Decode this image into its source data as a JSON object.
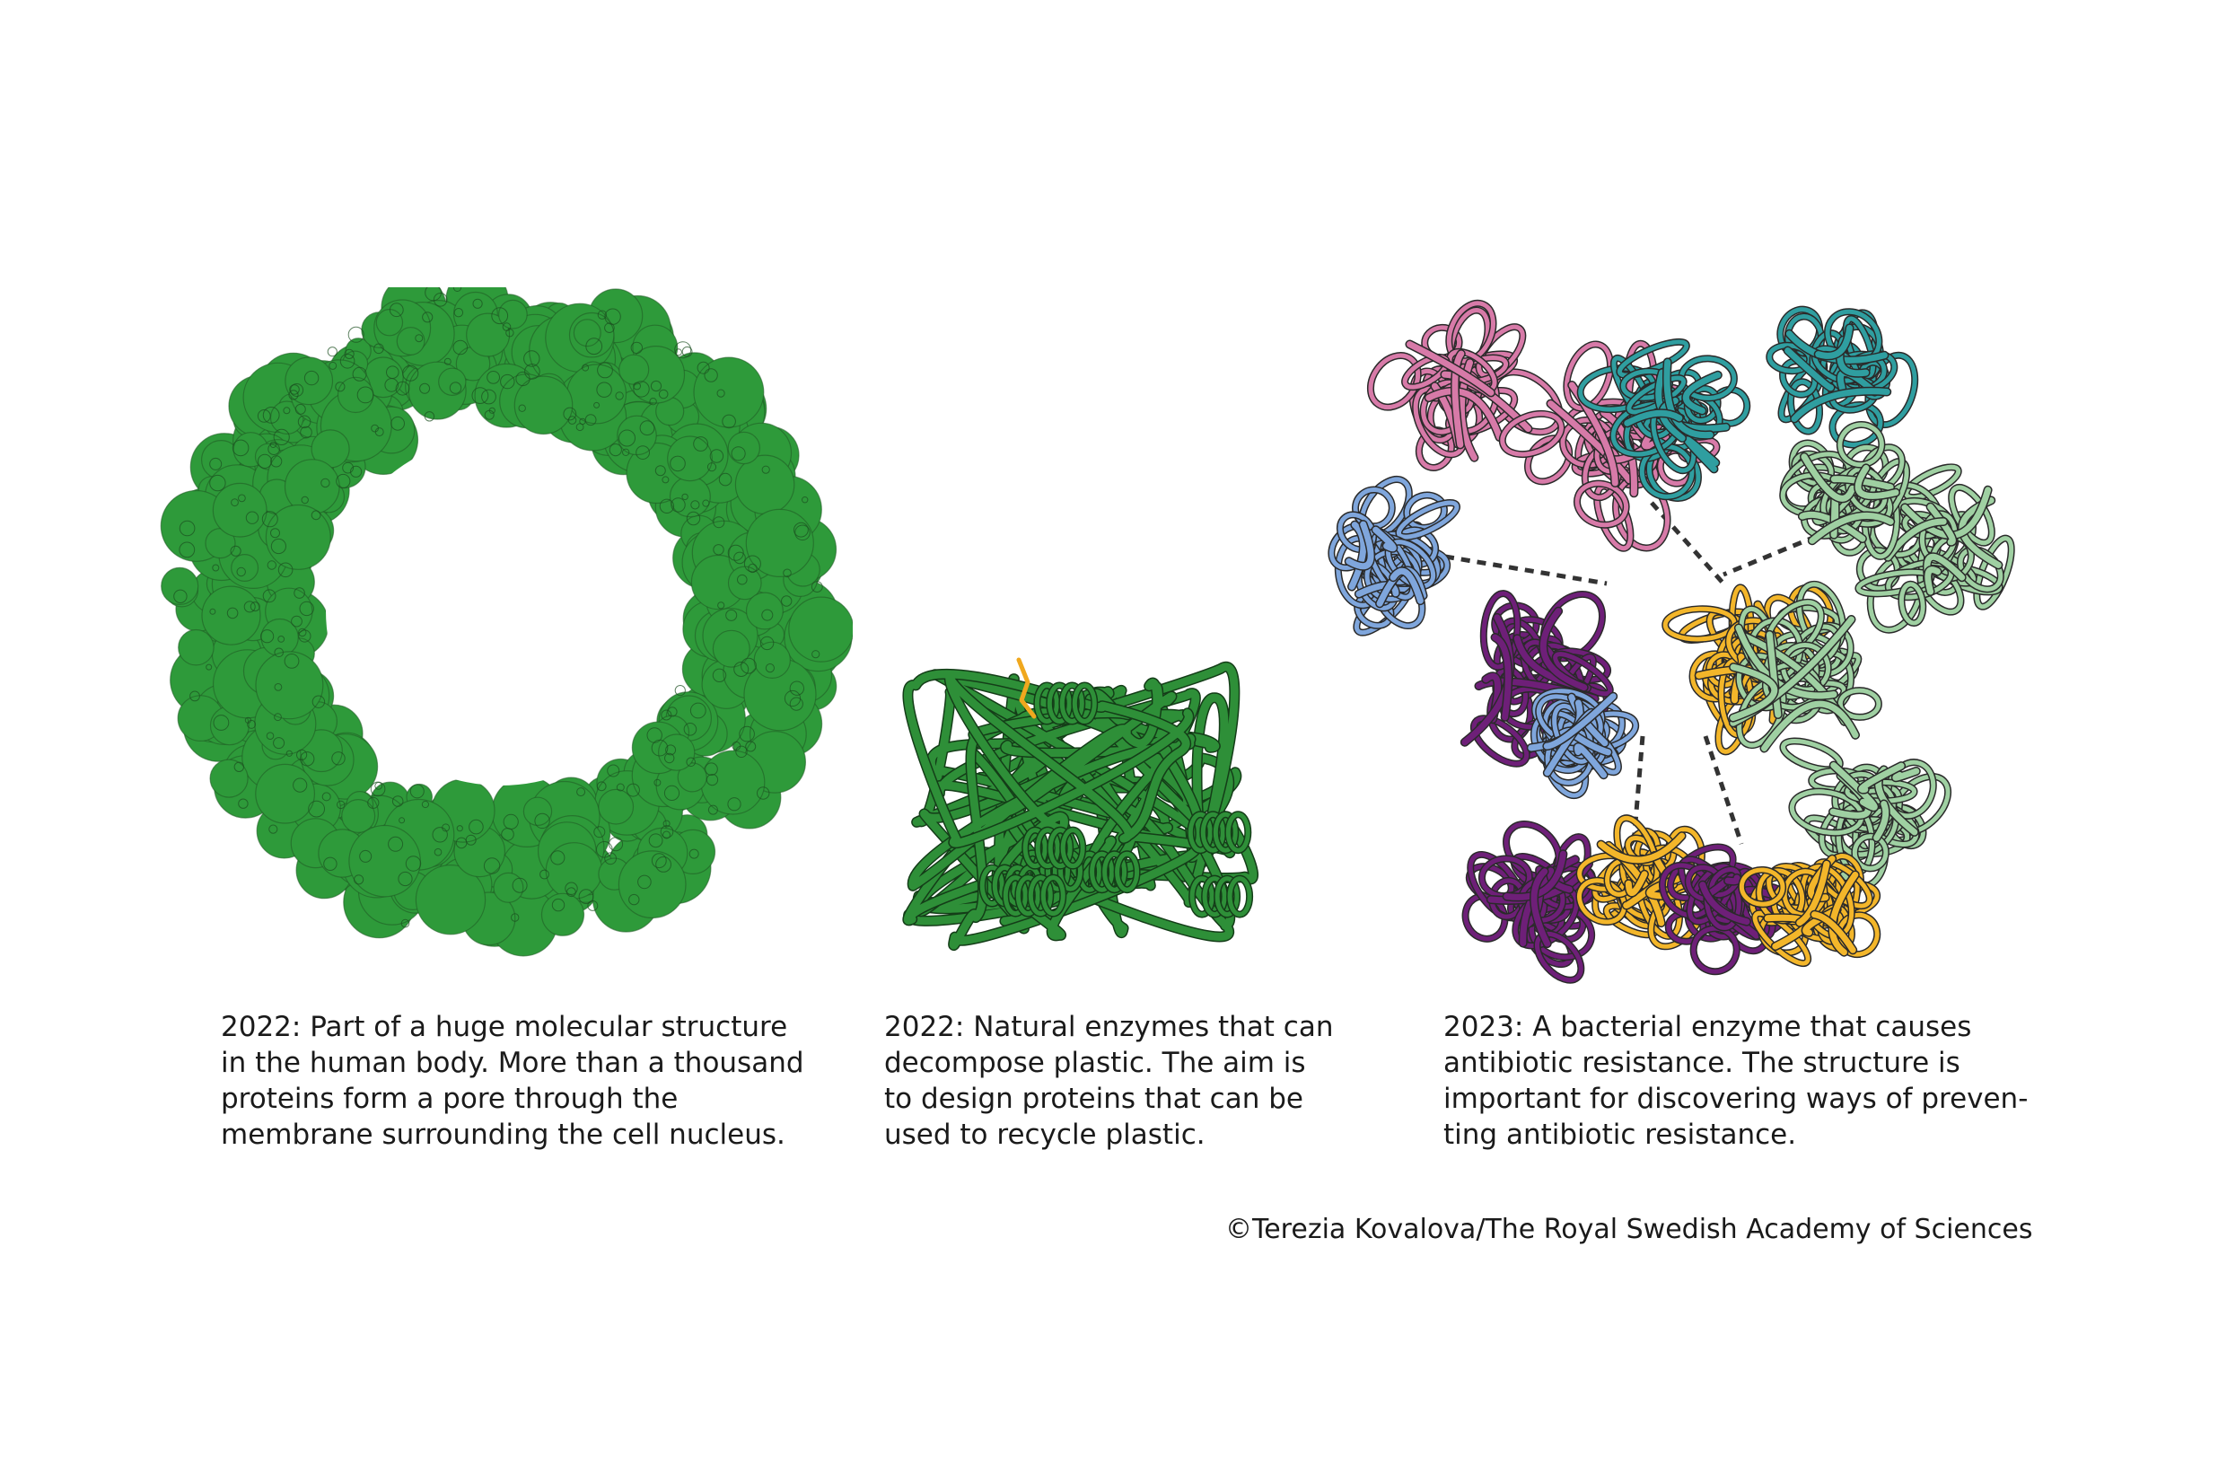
{
  "panels": [
    {
      "id": "nuclear-pore",
      "illustration_color": "#2e9a3a",
      "caption_lines": [
        "2022: Part of a huge molecular structure",
        "in the human body. More than a thousand",
        "proteins form a pore through the",
        "membrane surrounding the cell nucleus."
      ]
    },
    {
      "id": "plastic-enzyme",
      "illustration_color": "#2e8f38",
      "highlight_color": "#f0a81e",
      "caption_lines": [
        "2022: Natural enzymes that can",
        "decompose plastic. The aim is",
        "to design proteins that can be",
        "used to recycle plastic."
      ]
    },
    {
      "id": "bacterial-enzyme",
      "subunit_colors": [
        "#d77aa8",
        "#2f9ea0",
        "#7fa6dc",
        "#6e1f78",
        "#9fd0a2",
        "#f3b62a"
      ],
      "caption_lines": [
        "2023: A bacterial enzyme that causes",
        "antibiotic resistance. The structure is",
        "important for discovering ways of preven-",
        "ting antibiotic resistance."
      ]
    }
  ],
  "credit": "©Terezia Kovalova/The Royal Swedish Academy of Sciences"
}
